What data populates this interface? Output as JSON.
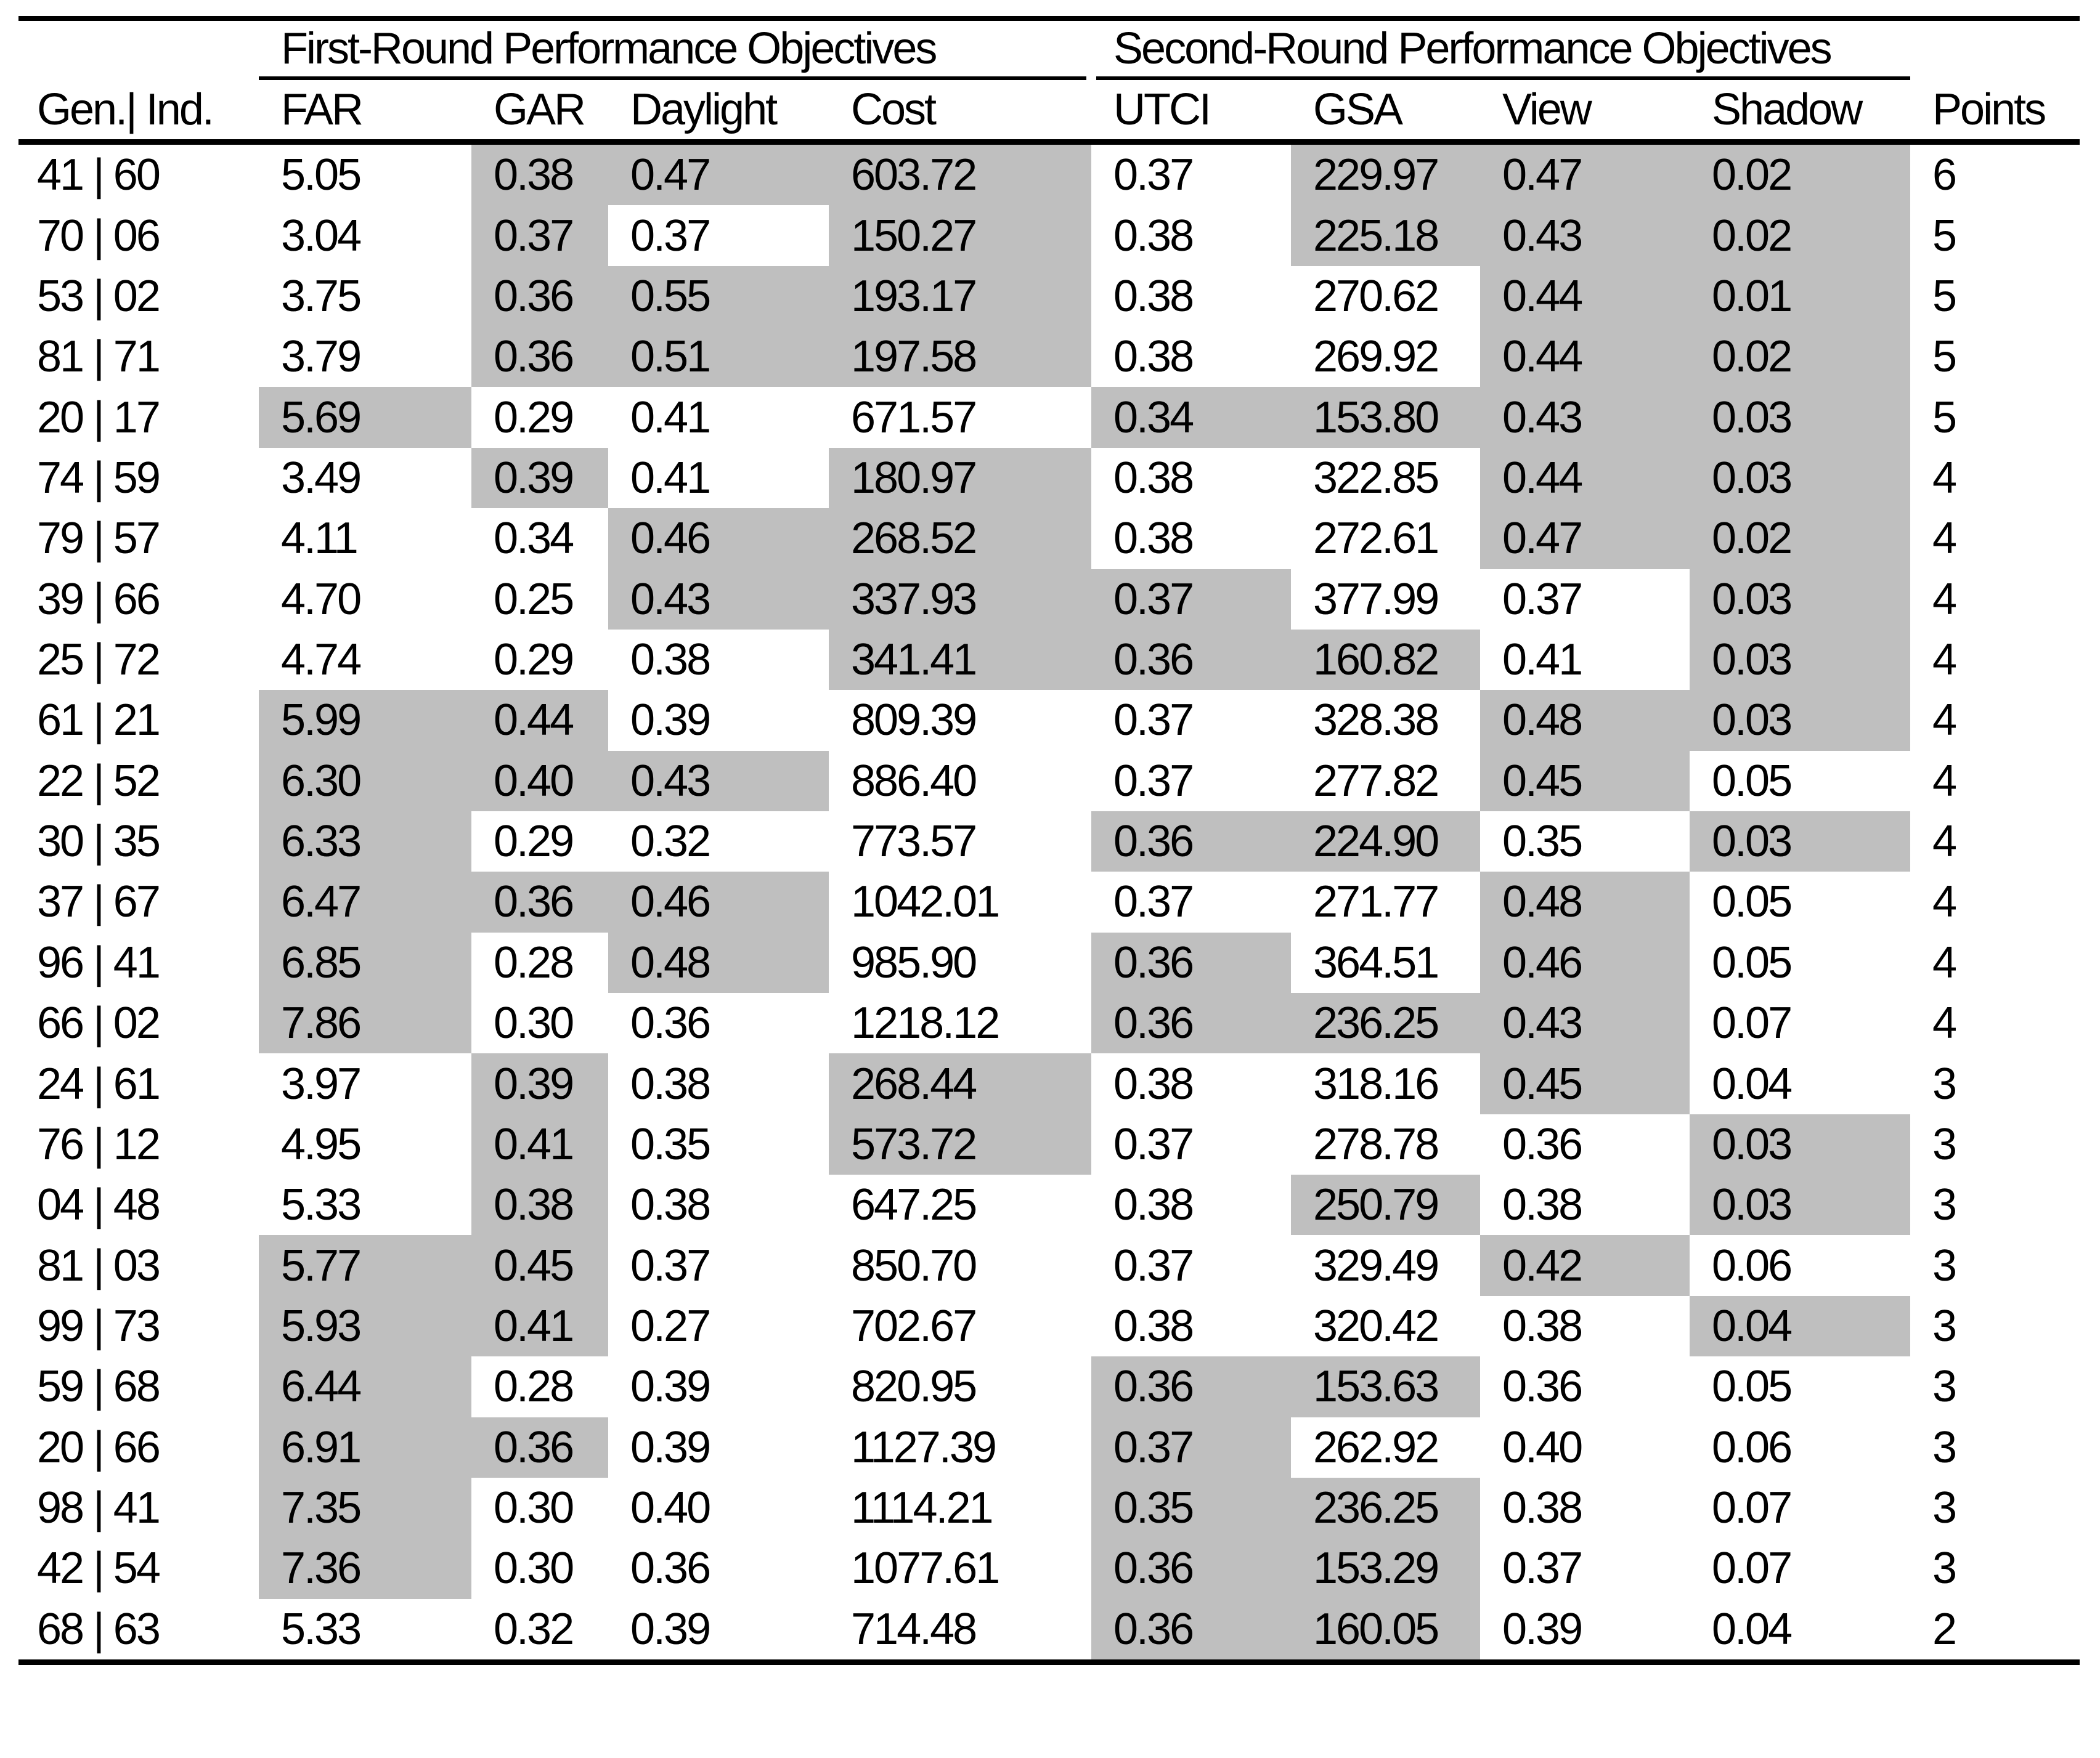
{
  "colors": {
    "shaded_cell": "#bfbfbf",
    "rule": "#000000",
    "background": "#ffffff"
  },
  "table": {
    "id_header": "Gen.| Ind.",
    "group_headers": [
      "First-Round Performance Objectives",
      "Second-Round Performance Objectives"
    ],
    "columns": [
      "FAR",
      "GAR",
      "Daylight",
      "Cost",
      "UTCI",
      "GSA",
      "View",
      "Shadow"
    ],
    "points_header": "Points",
    "rows": [
      {
        "id": "41 | 60",
        "values": [
          "5.05",
          "0.38",
          "0.47",
          "603.72",
          "0.37",
          "229.97",
          "0.47",
          "0.02"
        ],
        "shaded": [
          false,
          true,
          true,
          true,
          false,
          true,
          true,
          true
        ],
        "points": "6"
      },
      {
        "id": "70 | 06",
        "values": [
          "3.04",
          "0.37",
          "0.37",
          "150.27",
          "0.38",
          "225.18",
          "0.43",
          "0.02"
        ],
        "shaded": [
          false,
          true,
          false,
          true,
          false,
          true,
          true,
          true
        ],
        "points": "5"
      },
      {
        "id": "53 | 02",
        "values": [
          "3.75",
          "0.36",
          "0.55",
          "193.17",
          "0.38",
          "270.62",
          "0.44",
          "0.01"
        ],
        "shaded": [
          false,
          true,
          true,
          true,
          false,
          false,
          true,
          true
        ],
        "points": "5"
      },
      {
        "id": "81 | 71",
        "values": [
          "3.79",
          "0.36",
          "0.51",
          "197.58",
          "0.38",
          "269.92",
          "0.44",
          "0.02"
        ],
        "shaded": [
          false,
          true,
          true,
          true,
          false,
          false,
          true,
          true
        ],
        "points": "5"
      },
      {
        "id": "20 | 17",
        "values": [
          "5.69",
          "0.29",
          "0.41",
          "671.57",
          "0.34",
          "153.80",
          "0.43",
          "0.03"
        ],
        "shaded": [
          true,
          false,
          false,
          false,
          true,
          true,
          true,
          true
        ],
        "points": "5"
      },
      {
        "id": "74 | 59",
        "values": [
          "3.49",
          "0.39",
          "0.41",
          "180.97",
          "0.38",
          "322.85",
          "0.44",
          "0.03"
        ],
        "shaded": [
          false,
          true,
          false,
          true,
          false,
          false,
          true,
          true
        ],
        "points": "4"
      },
      {
        "id": "79 | 57",
        "values": [
          "4.11",
          "0.34",
          "0.46",
          "268.52",
          "0.38",
          "272.61",
          "0.47",
          "0.02"
        ],
        "shaded": [
          false,
          false,
          true,
          true,
          false,
          false,
          true,
          true
        ],
        "points": "4"
      },
      {
        "id": "39 | 66",
        "values": [
          "4.70",
          "0.25",
          "0.43",
          "337.93",
          "0.37",
          "377.99",
          "0.37",
          "0.03"
        ],
        "shaded": [
          false,
          false,
          true,
          true,
          true,
          false,
          false,
          true
        ],
        "points": "4"
      },
      {
        "id": "25 | 72",
        "values": [
          "4.74",
          "0.29",
          "0.38",
          "341.41",
          "0.36",
          "160.82",
          "0.41",
          "0.03"
        ],
        "shaded": [
          false,
          false,
          false,
          true,
          true,
          true,
          false,
          true
        ],
        "points": "4"
      },
      {
        "id": "61 | 21",
        "values": [
          "5.99",
          "0.44",
          "0.39",
          "809.39",
          "0.37",
          "328.38",
          "0.48",
          "0.03"
        ],
        "shaded": [
          true,
          true,
          false,
          false,
          false,
          false,
          true,
          true
        ],
        "points": "4"
      },
      {
        "id": "22 | 52",
        "values": [
          "6.30",
          "0.40",
          "0.43",
          "886.40",
          "0.37",
          "277.82",
          "0.45",
          "0.05"
        ],
        "shaded": [
          true,
          true,
          true,
          false,
          false,
          false,
          true,
          false
        ],
        "points": "4"
      },
      {
        "id": "30 | 35",
        "values": [
          "6.33",
          "0.29",
          "0.32",
          "773.57",
          "0.36",
          "224.90",
          "0.35",
          "0.03"
        ],
        "shaded": [
          true,
          false,
          false,
          false,
          true,
          true,
          false,
          true
        ],
        "points": "4"
      },
      {
        "id": "37 | 67",
        "values": [
          "6.47",
          "0.36",
          "0.46",
          "1042.01",
          "0.37",
          "271.77",
          "0.48",
          "0.05"
        ],
        "shaded": [
          true,
          true,
          true,
          false,
          false,
          false,
          true,
          false
        ],
        "points": "4"
      },
      {
        "id": "96 | 41",
        "values": [
          "6.85",
          "0.28",
          "0.48",
          "985.90",
          "0.36",
          "364.51",
          "0.46",
          "0.05"
        ],
        "shaded": [
          true,
          false,
          true,
          false,
          true,
          false,
          true,
          false
        ],
        "points": "4"
      },
      {
        "id": "66 | 02",
        "values": [
          "7.86",
          "0.30",
          "0.36",
          "1218.12",
          "0.36",
          "236.25",
          "0.43",
          "0.07"
        ],
        "shaded": [
          true,
          false,
          false,
          false,
          true,
          true,
          true,
          false
        ],
        "points": "4"
      },
      {
        "id": "24 | 61",
        "values": [
          "3.97",
          "0.39",
          "0.38",
          "268.44",
          "0.38",
          "318.16",
          "0.45",
          "0.04"
        ],
        "shaded": [
          false,
          true,
          false,
          true,
          false,
          false,
          true,
          false
        ],
        "points": "3"
      },
      {
        "id": "76 | 12",
        "values": [
          "4.95",
          "0.41",
          "0.35",
          "573.72",
          "0.37",
          "278.78",
          "0.36",
          "0.03"
        ],
        "shaded": [
          false,
          true,
          false,
          true,
          false,
          false,
          false,
          true
        ],
        "points": "3"
      },
      {
        "id": "04 | 48",
        "values": [
          "5.33",
          "0.38",
          "0.38",
          "647.25",
          "0.38",
          "250.79",
          "0.38",
          "0.03"
        ],
        "shaded": [
          false,
          true,
          false,
          false,
          false,
          true,
          false,
          true
        ],
        "points": "3"
      },
      {
        "id": "81 | 03",
        "values": [
          "5.77",
          "0.45",
          "0.37",
          "850.70",
          "0.37",
          "329.49",
          "0.42",
          "0.06"
        ],
        "shaded": [
          true,
          true,
          false,
          false,
          false,
          false,
          true,
          false
        ],
        "points": "3"
      },
      {
        "id": "99 | 73",
        "values": [
          "5.93",
          "0.41",
          "0.27",
          "702.67",
          "0.38",
          "320.42",
          "0.38",
          "0.04"
        ],
        "shaded": [
          true,
          true,
          false,
          false,
          false,
          false,
          false,
          true
        ],
        "points": "3"
      },
      {
        "id": "59 | 68",
        "values": [
          "6.44",
          "0.28",
          "0.39",
          "820.95",
          "0.36",
          "153.63",
          "0.36",
          "0.05"
        ],
        "shaded": [
          true,
          false,
          false,
          false,
          true,
          true,
          false,
          false
        ],
        "points": "3"
      },
      {
        "id": "20 | 66",
        "values": [
          "6.91",
          "0.36",
          "0.39",
          "1127.39",
          "0.37",
          "262.92",
          "0.40",
          "0.06"
        ],
        "shaded": [
          true,
          true,
          false,
          false,
          true,
          false,
          false,
          false
        ],
        "points": "3"
      },
      {
        "id": "98 | 41",
        "values": [
          "7.35",
          "0.30",
          "0.40",
          "1114.21",
          "0.35",
          "236.25",
          "0.38",
          "0.07"
        ],
        "shaded": [
          true,
          false,
          false,
          false,
          true,
          true,
          false,
          false
        ],
        "points": "3"
      },
      {
        "id": "42 | 54",
        "values": [
          "7.36",
          "0.30",
          "0.36",
          "1077.61",
          "0.36",
          "153.29",
          "0.37",
          "0.07"
        ],
        "shaded": [
          true,
          false,
          false,
          false,
          true,
          true,
          false,
          false
        ],
        "points": "3"
      },
      {
        "id": "68 | 63",
        "values": [
          "5.33",
          "0.32",
          "0.39",
          "714.48",
          "0.36",
          "160.05",
          "0.39",
          "0.04"
        ],
        "shaded": [
          false,
          false,
          false,
          false,
          true,
          true,
          false,
          false
        ],
        "points": "2"
      }
    ]
  }
}
